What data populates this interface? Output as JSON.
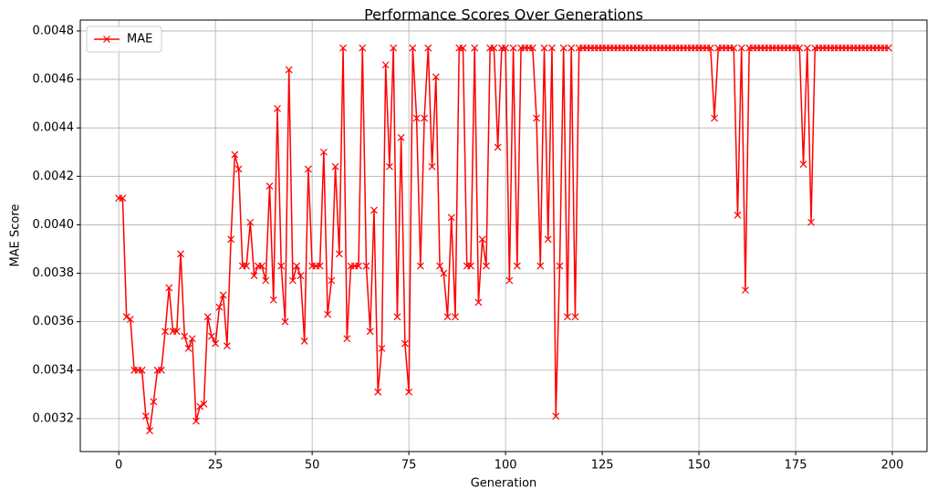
{
  "chart_data": {
    "type": "line",
    "title": "Performance Scores Over Generations",
    "xlabel": "Generation",
    "ylabel": "MAE Score",
    "x": [
      0,
      1,
      2,
      3,
      4,
      5,
      6,
      7,
      8,
      9,
      10,
      11,
      12,
      13,
      14,
      15,
      16,
      17,
      18,
      19,
      20,
      21,
      22,
      23,
      24,
      25,
      26,
      27,
      28,
      29,
      30,
      31,
      32,
      33,
      34,
      35,
      36,
      37,
      38,
      39,
      40,
      41,
      42,
      43,
      44,
      45,
      46,
      47,
      48,
      49,
      50,
      51,
      52,
      53,
      54,
      55,
      56,
      57,
      58,
      59,
      60,
      61,
      62,
      63,
      64,
      65,
      66,
      67,
      68,
      69,
      70,
      71,
      72,
      73,
      74,
      75,
      76,
      77,
      78,
      79,
      80,
      81,
      82,
      83,
      84,
      85,
      86,
      87,
      88,
      89,
      90,
      91,
      92,
      93,
      94,
      95,
      96,
      97,
      98,
      99,
      100,
      101,
      102,
      103,
      104,
      105,
      106,
      107,
      108,
      109,
      110,
      111,
      112,
      113,
      114,
      115,
      116,
      117,
      118,
      119,
      120,
      121,
      122,
      123,
      124,
      125,
      126,
      127,
      128,
      129,
      130,
      131,
      132,
      133,
      134,
      135,
      136,
      137,
      138,
      139,
      140,
      141,
      142,
      143,
      144,
      145,
      146,
      147,
      148,
      149,
      150,
      151,
      152,
      153,
      154,
      155,
      156,
      157,
      158,
      159,
      160,
      161,
      162,
      163,
      164,
      165,
      166,
      167,
      168,
      169,
      170,
      171,
      172,
      173,
      174,
      175,
      176,
      177,
      178,
      179,
      180,
      181,
      182,
      183,
      184,
      185,
      186,
      187,
      188,
      189,
      190,
      191,
      192,
      193,
      194,
      195,
      196,
      197,
      198,
      199
    ],
    "series": [
      {
        "name": "MAE",
        "color": "#ff0000",
        "marker": "x",
        "values": [
          0.00411,
          0.00411,
          0.00362,
          0.00361,
          0.0034,
          0.0034,
          0.0034,
          0.00321,
          0.00315,
          0.00327,
          0.0034,
          0.0034,
          0.00356,
          0.00374,
          0.00356,
          0.00356,
          0.00388,
          0.00354,
          0.00349,
          0.00353,
          0.00319,
          0.00325,
          0.00326,
          0.00362,
          0.00354,
          0.00351,
          0.00366,
          0.00371,
          0.0035,
          0.00394,
          0.00429,
          0.00423,
          0.00383,
          0.00383,
          0.00401,
          0.00379,
          0.00383,
          0.00383,
          0.00377,
          0.00416,
          0.00369,
          0.00448,
          0.00383,
          0.0036,
          0.00464,
          0.00377,
          0.00383,
          0.00379,
          0.00352,
          0.00423,
          0.00383,
          0.00383,
          0.00383,
          0.0043,
          0.00363,
          0.00377,
          0.00424,
          0.00388,
          0.00473,
          0.00353,
          0.00383,
          0.00383,
          0.00383,
          0.00473,
          0.00383,
          0.00356,
          0.00406,
          0.00331,
          0.00349,
          0.00466,
          0.00424,
          0.00473,
          0.00362,
          0.00436,
          0.00351,
          0.00331,
          0.00473,
          0.00444,
          0.00383,
          0.00444,
          0.00473,
          0.00424,
          0.00461,
          0.00383,
          0.0038,
          0.00362,
          0.00403,
          0.00362,
          0.00473,
          0.00473,
          0.00383,
          0.00383,
          0.00473,
          0.00368,
          0.00394,
          0.00383,
          0.00473,
          0.00473,
          0.00432,
          0.00473,
          0.00473,
          0.00377,
          0.00473,
          0.00383,
          0.00473,
          0.00473,
          0.00473,
          0.00473,
          0.00444,
          0.00383,
          0.00473,
          0.00394,
          0.00473,
          0.00321,
          0.00383,
          0.00473,
          0.00362,
          0.00473,
          0.00362,
          0.00473,
          0.00473,
          0.00473,
          0.00473,
          0.00473,
          0.00473,
          0.00473,
          0.00473,
          0.00473,
          0.00473,
          0.00473,
          0.00473,
          0.00473,
          0.00473,
          0.00473,
          0.00473,
          0.00473,
          0.00473,
          0.00473,
          0.00473,
          0.00473,
          0.00473,
          0.00473,
          0.00473,
          0.00473,
          0.00473,
          0.00473,
          0.00473,
          0.00473,
          0.00473,
          0.00473,
          0.00473,
          0.00473,
          0.00473,
          0.00473,
          0.00444,
          0.00473,
          0.00473,
          0.00473,
          0.00473,
          0.00473,
          0.00404,
          0.00473,
          0.00373,
          0.00473,
          0.00473,
          0.00473,
          0.00473,
          0.00473,
          0.00473,
          0.00473,
          0.00473,
          0.00473,
          0.00473,
          0.00473,
          0.00473,
          0.00473,
          0.00473,
          0.00425,
          0.00473,
          0.00401,
          0.00473,
          0.00473,
          0.00473,
          0.00473,
          0.00473,
          0.00473,
          0.00473,
          0.00473,
          0.00473,
          0.00473,
          0.00473,
          0.00473,
          0.00473,
          0.00473,
          0.00473,
          0.00473,
          0.00473,
          0.00473,
          0.00473,
          0.00473
        ]
      }
    ],
    "xlim": [
      -9.95,
      208.95
    ],
    "xticks": [
      0,
      25,
      50,
      75,
      100,
      125,
      150,
      175,
      200
    ],
    "ylim": [
      0.003064,
      0.004845
    ],
    "yticks": [
      0.0032,
      0.0034,
      0.0036,
      0.0038,
      {
        "value": 0.004,
        "label": "0.0040"
      },
      0.0042,
      0.0044,
      0.0046,
      0.0048
    ],
    "grid": true,
    "legend": "upper-left"
  }
}
